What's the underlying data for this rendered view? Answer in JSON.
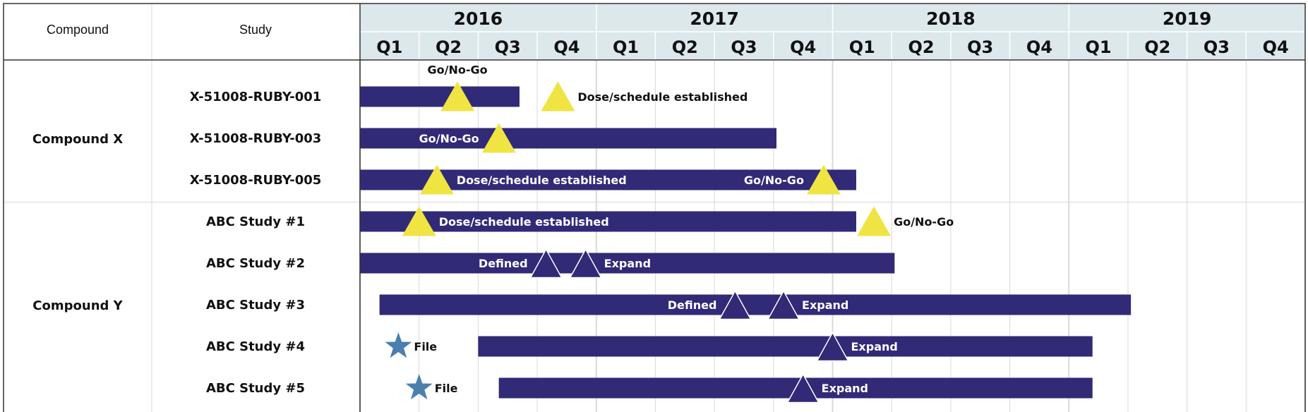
{
  "colors": {
    "bar": "#312a77",
    "header_bg": "#dce8ec",
    "gold_triangle": "#f0e442",
    "star": "#4a7fae",
    "grid": "#d9d9d9",
    "border": "#333333"
  },
  "table_headers": {
    "compound": "Compound",
    "study": "Study"
  },
  "chart_data": {
    "type": "gantt",
    "time_unit": "quarter",
    "timeline_start": "2016-Q1",
    "years": [
      "2016",
      "2017",
      "2018",
      "2019"
    ],
    "quarters": [
      "Q1",
      "Q2",
      "Q3",
      "Q4"
    ],
    "groups": [
      {
        "compound": "Compound X",
        "rows": [
          0,
          1,
          2
        ]
      },
      {
        "compound": "Compound Y",
        "rows": [
          3,
          4,
          5,
          6,
          7
        ]
      }
    ],
    "rows": [
      {
        "study": "X-51008-RUBY-001",
        "bar": {
          "start": 0.0,
          "end": 2.7
        },
        "milestones": [
          {
            "type": "triangle",
            "at": 1.65,
            "label": "Go/No-Go",
            "label_pos": "above"
          },
          {
            "type": "triangle",
            "at": 3.35,
            "label": "Dose/schedule established",
            "label_pos": "right"
          }
        ]
      },
      {
        "study": "X-51008-RUBY-003",
        "bar": {
          "start": 0.0,
          "end": 7.05
        },
        "milestones": [
          {
            "type": "triangle",
            "at": 2.35,
            "label": "Go/No-Go",
            "label_pos": "left"
          }
        ]
      },
      {
        "study": "X-51008-RUBY-005",
        "bar": {
          "start": 0.0,
          "end": 8.4
        },
        "milestones": [
          {
            "type": "triangle",
            "at": 1.3,
            "label": "Dose/schedule established",
            "label_pos": "right"
          },
          {
            "type": "triangle",
            "at": 7.85,
            "label": "Go/No-Go",
            "label_pos": "left"
          }
        ]
      },
      {
        "study": "ABC Study #1",
        "bar": {
          "start": 0.0,
          "end": 8.4
        },
        "milestones": [
          {
            "type": "triangle",
            "at": 1.0,
            "label": "Dose/schedule established",
            "label_pos": "right"
          },
          {
            "type": "triangle",
            "at": 8.7,
            "label": "Go/No-Go",
            "label_pos": "right"
          }
        ]
      },
      {
        "study": "ABC Study #2",
        "bar": {
          "start": 0.0,
          "end": 9.05
        },
        "milestones": [
          {
            "type": "hollow-triangle",
            "at": 3.15,
            "label": "Defined",
            "label_pos": "left"
          },
          {
            "type": "hollow-triangle",
            "at": 3.82,
            "label": "Expand",
            "label_pos": "right"
          }
        ]
      },
      {
        "study": "ABC Study #3",
        "bar": {
          "start": 0.33,
          "end": 13.05
        },
        "milestones": [
          {
            "type": "hollow-triangle",
            "at": 6.35,
            "label": "Defined",
            "label_pos": "left"
          },
          {
            "type": "hollow-triangle",
            "at": 7.17,
            "label": "Expand",
            "label_pos": "right"
          }
        ]
      },
      {
        "study": "ABC Study #4",
        "bar": {
          "start": 2.0,
          "end": 12.4
        },
        "milestones": [
          {
            "type": "star",
            "at": 0.65,
            "label": "File",
            "label_pos": "right"
          },
          {
            "type": "hollow-triangle",
            "at": 8.0,
            "label": "Expand",
            "label_pos": "right"
          }
        ]
      },
      {
        "study": "ABC Study #5",
        "bar": {
          "start": 2.35,
          "end": 12.4
        },
        "milestones": [
          {
            "type": "star",
            "at": 1.0,
            "label": "File",
            "label_pos": "right"
          },
          {
            "type": "hollow-triangle",
            "at": 7.5,
            "label": "Expand",
            "label_pos": "right"
          }
        ]
      }
    ]
  }
}
